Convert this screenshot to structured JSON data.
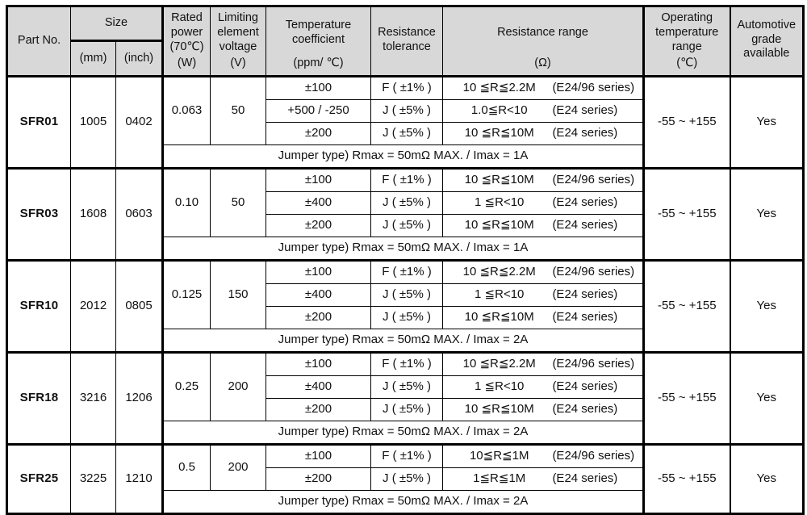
{
  "table": {
    "header": {
      "part_no": "Part No.",
      "size": "Size",
      "size_mm": "(mm)",
      "size_inch": "(inch)",
      "rated_power": {
        "label": "Rated power (70℃)",
        "unit": "(W)"
      },
      "limiting_voltage": {
        "label": "Limiting element voltage",
        "unit": "(V)"
      },
      "temp_coefficient": {
        "label": "Temperature coefficient",
        "unit": "(ppm/ ℃)"
      },
      "resistance_tolerance": {
        "label": "Resistance tolerance",
        "unit": ""
      },
      "resistance_range": {
        "label": "Resistance range",
        "unit": "(Ω)"
      },
      "operating_temp": {
        "label": "Operating temperature range",
        "unit": "(℃)"
      },
      "automotive": {
        "label": "Automotive grade available",
        "unit": ""
      }
    },
    "blocks": [
      {
        "part": "SFR01",
        "mm": "1005",
        "inch": "0402",
        "power": "0.063",
        "voltage": "50",
        "variants": [
          {
            "tc": "±100",
            "tol": "F ( ±1% )",
            "range": "10 ≦R≦2.2M",
            "series": "(E24/96 series)"
          },
          {
            "tc": "+500 / -250",
            "tol": "J ( ±5% )",
            "range": "1.0≦R<10",
            "series": "(E24 series)"
          },
          {
            "tc": "±200",
            "tol": "J ( ±5% )",
            "range": "10 ≦R≦10M",
            "series": "(E24 series)"
          }
        ],
        "jumper": "Jumper type) Rmax = 50mΩ MAX. / Imax = 1A",
        "op_temp": "-55 ~ +155",
        "automotive": "Yes"
      },
      {
        "part": "SFR03",
        "mm": "1608",
        "inch": "0603",
        "power": "0.10",
        "voltage": "50",
        "variants": [
          {
            "tc": "±100",
            "tol": "F ( ±1% )",
            "range": "10 ≦R≦10M",
            "series": "(E24/96 series)"
          },
          {
            "tc": "±400",
            "tol": "J ( ±5% )",
            "range": "1 ≦R<10",
            "series": "(E24 series)"
          },
          {
            "tc": "±200",
            "tol": "J ( ±5% )",
            "range": "10 ≦R≦10M",
            "series": "(E24 series)"
          }
        ],
        "jumper": "Jumper type) Rmax = 50mΩ MAX. / Imax = 1A",
        "op_temp": "-55 ~ +155",
        "automotive": "Yes"
      },
      {
        "part": "SFR10",
        "mm": "2012",
        "inch": "0805",
        "power": "0.125",
        "voltage": "150",
        "variants": [
          {
            "tc": "±100",
            "tol": "F ( ±1% )",
            "range": "10 ≦R≦2.2M",
            "series": "(E24/96 series)"
          },
          {
            "tc": "±400",
            "tol": "J ( ±5% )",
            "range": "1 ≦R<10",
            "series": "(E24 series)"
          },
          {
            "tc": "±200",
            "tol": "J ( ±5% )",
            "range": "10 ≦R≦10M",
            "series": "(E24 series)"
          }
        ],
        "jumper": "Jumper type) Rmax = 50mΩ MAX. / Imax = 2A",
        "op_temp": "-55 ~ +155",
        "automotive": "Yes"
      },
      {
        "part": "SFR18",
        "mm": "3216",
        "inch": "1206",
        "power": "0.25",
        "voltage": "200",
        "variants": [
          {
            "tc": "±100",
            "tol": "F ( ±1% )",
            "range": "10 ≦R≦2.2M",
            "series": "(E24/96 series)"
          },
          {
            "tc": "±400",
            "tol": "J ( ±5% )",
            "range": "1 ≦R<10",
            "series": "(E24 series)"
          },
          {
            "tc": "±200",
            "tol": "J ( ±5% )",
            "range": "10 ≦R≦10M",
            "series": "(E24 series)"
          }
        ],
        "jumper": "Jumper type) Rmax = 50mΩ MAX. / Imax = 2A",
        "op_temp": "-55 ~ +155",
        "automotive": "Yes"
      },
      {
        "part": "SFR25",
        "mm": "3225",
        "inch": "1210",
        "power": "0.5",
        "voltage": "200",
        "variants": [
          {
            "tc": "±100",
            "tol": "F ( ±1% )",
            "range": "10≦R≦1M",
            "series": "(E24/96 series)"
          },
          {
            "tc": "±200",
            "tol": "J ( ±5% )",
            "range": "1≦R≦1M",
            "series": "(E24 series)"
          }
        ],
        "jumper": "Jumper type) Rmax = 50mΩ MAX. / Imax = 2A",
        "op_temp": "-55 ~ +155",
        "automotive": "Yes"
      }
    ]
  }
}
